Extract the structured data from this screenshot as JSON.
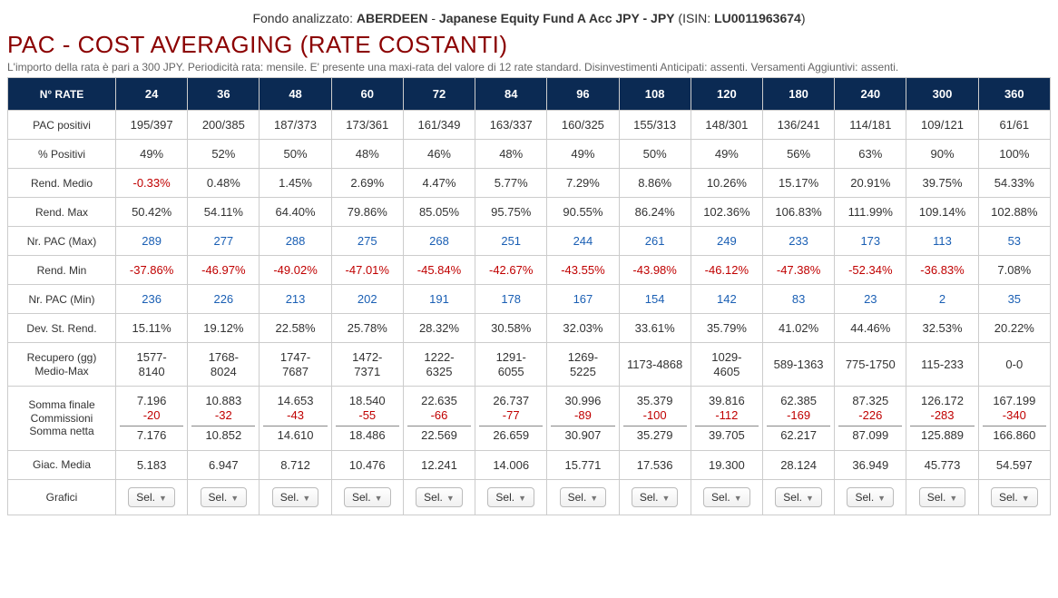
{
  "header": {
    "prefix": "Fondo analizzato: ",
    "fund_company": "ABERDEEN",
    "fund_sep": " - ",
    "fund_name": "Japanese Equity Fund A Acc JPY - JPY",
    "isin_prefix": " (ISIN: ",
    "isin": "LU0011963674",
    "isin_suffix": ")"
  },
  "title": "PAC - COST AVERAGING (RATE COSTANTI)",
  "subtitle": "L'importo della rata è pari a 300 JPY. Periodicità rata: mensile. E' presente una maxi-rata del valore di 12 rate standard. Disinvestimenti Anticipati: assenti. Versamenti Aggiuntivi: assenti.",
  "columns_header": "N° RATE",
  "columns": [
    "24",
    "36",
    "48",
    "60",
    "72",
    "84",
    "96",
    "108",
    "120",
    "180",
    "240",
    "300",
    "360"
  ],
  "rows": [
    {
      "label": "PAC positivi",
      "type": "plain",
      "cells": [
        "195/397",
        "200/385",
        "187/373",
        "173/361",
        "161/349",
        "163/337",
        "160/325",
        "155/313",
        "148/301",
        "136/241",
        "114/181",
        "109/121",
        "61/61"
      ]
    },
    {
      "label": "% Positivi",
      "type": "plain",
      "cells": [
        "49%",
        "52%",
        "50%",
        "48%",
        "46%",
        "48%",
        "49%",
        "50%",
        "49%",
        "56%",
        "63%",
        "90%",
        "100%"
      ]
    },
    {
      "label": "Rend. Medio",
      "type": "signed",
      "cells": [
        "-0.33%",
        "0.48%",
        "1.45%",
        "2.69%",
        "4.47%",
        "5.77%",
        "7.29%",
        "8.86%",
        "10.26%",
        "15.17%",
        "20.91%",
        "39.75%",
        "54.33%"
      ]
    },
    {
      "label": "Rend. Max",
      "type": "plain",
      "cells": [
        "50.42%",
        "54.11%",
        "64.40%",
        "79.86%",
        "85.05%",
        "95.75%",
        "90.55%",
        "86.24%",
        "102.36%",
        "106.83%",
        "111.99%",
        "109.14%",
        "102.88%"
      ]
    },
    {
      "label": "Nr. PAC (Max)",
      "type": "link",
      "cells": [
        "289",
        "277",
        "288",
        "275",
        "268",
        "251",
        "244",
        "261",
        "249",
        "233",
        "173",
        "113",
        "53"
      ]
    },
    {
      "label": "Rend. Min",
      "type": "signed",
      "cells": [
        "-37.86%",
        "-46.97%",
        "-49.02%",
        "-47.01%",
        "-45.84%",
        "-42.67%",
        "-43.55%",
        "-43.98%",
        "-46.12%",
        "-47.38%",
        "-52.34%",
        "-36.83%",
        "7.08%"
      ]
    },
    {
      "label": "Nr. PAC (Min)",
      "type": "link",
      "cells": [
        "236",
        "226",
        "213",
        "202",
        "191",
        "178",
        "167",
        "154",
        "142",
        "83",
        "23",
        "2",
        "35"
      ]
    },
    {
      "label": "Dev. St. Rend.",
      "type": "plain",
      "cells": [
        "15.11%",
        "19.12%",
        "22.58%",
        "25.78%",
        "28.32%",
        "30.58%",
        "32.03%",
        "33.61%",
        "35.79%",
        "41.02%",
        "44.46%",
        "32.53%",
        "20.22%"
      ]
    }
  ],
  "recupero": {
    "label1": "Recupero (gg)",
    "label2": "Medio-Max",
    "cells": [
      [
        "1577-",
        "8140"
      ],
      [
        "1768-",
        "8024"
      ],
      [
        "1747-",
        "7687"
      ],
      [
        "1472-",
        "7371"
      ],
      [
        "1222-",
        "6325"
      ],
      [
        "1291-",
        "6055"
      ],
      [
        "1269-",
        "5225"
      ],
      [
        "1173-4868",
        ""
      ],
      [
        "1029-",
        "4605"
      ],
      [
        "589-1363",
        ""
      ],
      [
        "775-1750",
        ""
      ],
      [
        "115-233",
        ""
      ],
      [
        "0-0",
        ""
      ]
    ]
  },
  "somma": {
    "label1": "Somma finale",
    "label2": "Commissioni",
    "label3": "Somma netta",
    "cells": [
      {
        "a": "7.196",
        "b": "-20",
        "c": "7.176"
      },
      {
        "a": "10.883",
        "b": "-32",
        "c": "10.852"
      },
      {
        "a": "14.653",
        "b": "-43",
        "c": "14.610"
      },
      {
        "a": "18.540",
        "b": "-55",
        "c": "18.486"
      },
      {
        "a": "22.635",
        "b": "-66",
        "c": "22.569"
      },
      {
        "a": "26.737",
        "b": "-77",
        "c": "26.659"
      },
      {
        "a": "30.996",
        "b": "-89",
        "c": "30.907"
      },
      {
        "a": "35.379",
        "b": "-100",
        "c": "35.279"
      },
      {
        "a": "39.816",
        "b": "-112",
        "c": "39.705"
      },
      {
        "a": "62.385",
        "b": "-169",
        "c": "62.217"
      },
      {
        "a": "87.325",
        "b": "-226",
        "c": "87.099"
      },
      {
        "a": "126.172",
        "b": "-283",
        "c": "125.889"
      },
      {
        "a": "167.199",
        "b": "-340",
        "c": "166.860"
      }
    ]
  },
  "giac": {
    "label": "Giac. Media",
    "cells": [
      "5.183",
      "6.947",
      "8.712",
      "10.476",
      "12.241",
      "14.006",
      "15.771",
      "17.536",
      "19.300",
      "28.124",
      "36.949",
      "45.773",
      "54.597"
    ]
  },
  "grafici": {
    "label": "Grafici",
    "button": "Sel."
  }
}
